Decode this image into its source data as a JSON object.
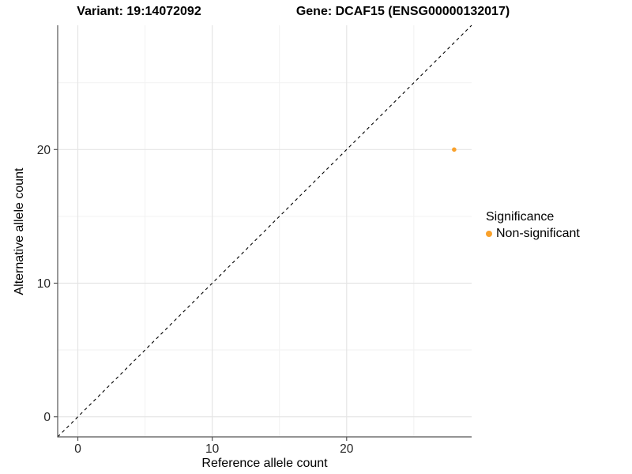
{
  "chart_data": {
    "type": "scatter",
    "title_left": "Variant: 19:14072092",
    "title_right": "Gene: DCAF15 (ENSG00000132017)",
    "xlabel": "Reference allele count",
    "ylabel": "Alternative allele count",
    "xlim": [
      -1.5,
      29.3
    ],
    "ylim": [
      -1.5,
      29.3
    ],
    "x_ticks": [
      0,
      10,
      20
    ],
    "y_ticks": [
      0,
      10,
      20
    ],
    "x_minor_ticks": [
      5,
      15,
      25
    ],
    "y_minor_ticks": [
      5,
      15,
      25
    ],
    "grid": true,
    "legend_position": "right",
    "identity_line": {
      "slope": 1,
      "intercept": 0,
      "style": "dashed",
      "color": "#000000"
    },
    "series": [
      {
        "name": "Non-significant",
        "color": "#F9A12B",
        "points": [
          {
            "x": 28,
            "y": 20
          }
        ]
      }
    ],
    "legend": {
      "title": "Significance",
      "items": [
        {
          "label": "Non-significant",
          "color": "#F9A12B"
        }
      ]
    }
  },
  "style_colors": {
    "major_grid": "#E5E5E5",
    "minor_grid": "#F2F2F2",
    "axis_line": "#555555",
    "tick_text": "#262626",
    "point": "#F9A12B"
  }
}
